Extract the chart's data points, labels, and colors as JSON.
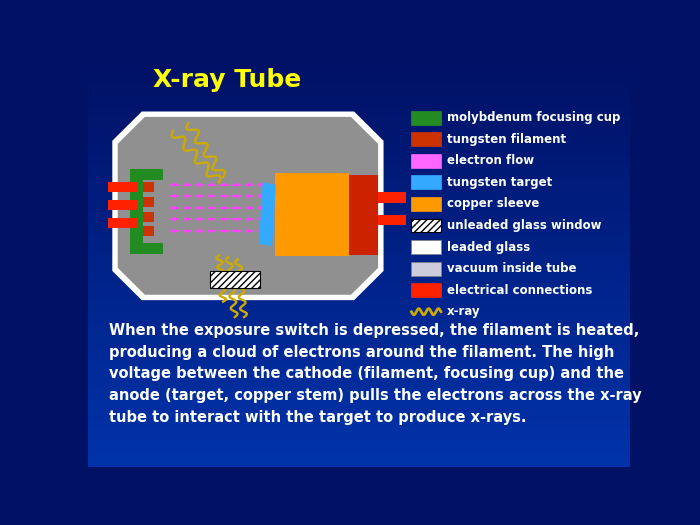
{
  "title": "X-ray Tube",
  "title_color": "#FFFF00",
  "title_fontsize": 18,
  "bg_top": "#001166",
  "bg_bottom": "#0033AA",
  "tube_gray": "#909090",
  "tube_outline": "#FFFFFF",
  "green_cup": "#228B22",
  "filament_color": "#CC3300",
  "electron_color": "#FF44FF",
  "target_color": "#33AAFF",
  "copper_color": "#FF9900",
  "anode_color": "#CC2200",
  "elec_conn_color": "#FF2200",
  "wire_color": "#CCAA00",
  "hatch_color": "#000000",
  "legend_items": [
    {
      "label": "molybdenum focusing cup",
      "color": "#228B22",
      "type": "rect"
    },
    {
      "label": "tungsten filament",
      "color": "#CC3300",
      "type": "rect"
    },
    {
      "label": "electron flow",
      "color": "#FF66FF",
      "type": "rect"
    },
    {
      "label": "tungsten target",
      "color": "#33AAFF",
      "type": "rect"
    },
    {
      "label": "copper sleeve",
      "color": "#FF9900",
      "type": "rect"
    },
    {
      "label": "unleaded glass window",
      "color": "hatch",
      "type": "hatch"
    },
    {
      "label": "leaded glass",
      "color": "#FFFFFF",
      "type": "rect"
    },
    {
      "label": "vacuum inside tube",
      "color": "#CCCCDD",
      "type": "rect"
    },
    {
      "label": "electrical connections",
      "color": "#FF2200",
      "type": "rect"
    },
    {
      "label": "x-ray",
      "color": "#CCAA00",
      "type": "wave"
    }
  ],
  "body_text": "When the exposure switch is depressed, the filament is heated,\nproducing a cloud of electrons around the filament. The high\nvoltage between the cathode (filament, focusing cup) and the\nanode (target, copper stem) pulls the electrons across the x-ray\ntube to interact with the target to produce x-rays.",
  "body_text_color": "#FFFFFF",
  "body_fontsize": 10.5
}
